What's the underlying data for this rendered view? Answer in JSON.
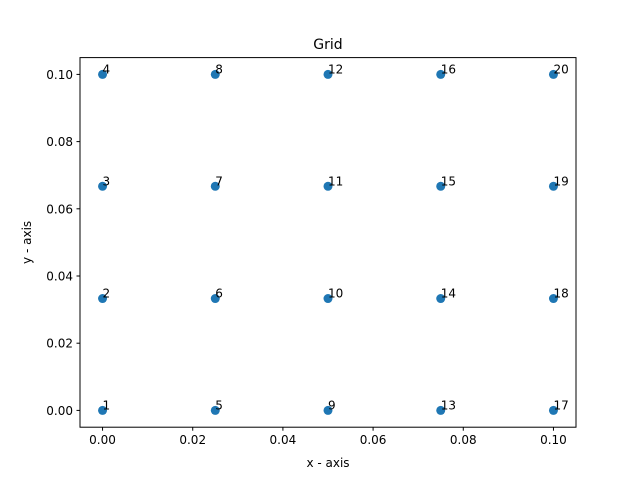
{
  "chart_data": {
    "type": "scatter",
    "title": "Grid",
    "xlabel": "x - axis",
    "ylabel": "y - axis",
    "xlim": [
      -0.005,
      0.105
    ],
    "ylim": [
      -0.005,
      0.105
    ],
    "grid": false,
    "marker_color": "#1f77b4",
    "xticks": [
      0.0,
      0.02,
      0.04,
      0.06,
      0.08,
      0.1
    ],
    "xtick_labels": [
      "0.00",
      "0.02",
      "0.04",
      "0.06",
      "0.08",
      "0.10"
    ],
    "yticks": [
      0.0,
      0.02,
      0.04,
      0.06,
      0.08,
      0.1
    ],
    "ytick_labels": [
      "0.00",
      "0.02",
      "0.04",
      "0.06",
      "0.08",
      "0.10"
    ],
    "points": [
      {
        "x": 0.0,
        "y": 0.0,
        "label": "1"
      },
      {
        "x": 0.0,
        "y": 0.0333,
        "label": "2"
      },
      {
        "x": 0.0,
        "y": 0.0667,
        "label": "3"
      },
      {
        "x": 0.0,
        "y": 0.1,
        "label": "4"
      },
      {
        "x": 0.025,
        "y": 0.0,
        "label": "5"
      },
      {
        "x": 0.025,
        "y": 0.0333,
        "label": "6"
      },
      {
        "x": 0.025,
        "y": 0.0667,
        "label": "7"
      },
      {
        "x": 0.025,
        "y": 0.1,
        "label": "8"
      },
      {
        "x": 0.05,
        "y": 0.0,
        "label": "9"
      },
      {
        "x": 0.05,
        "y": 0.0333,
        "label": "10"
      },
      {
        "x": 0.05,
        "y": 0.0667,
        "label": "11"
      },
      {
        "x": 0.05,
        "y": 0.1,
        "label": "12"
      },
      {
        "x": 0.075,
        "y": 0.0,
        "label": "13"
      },
      {
        "x": 0.075,
        "y": 0.0333,
        "label": "14"
      },
      {
        "x": 0.075,
        "y": 0.0667,
        "label": "15"
      },
      {
        "x": 0.075,
        "y": 0.1,
        "label": "16"
      },
      {
        "x": 0.1,
        "y": 0.0,
        "label": "17"
      },
      {
        "x": 0.1,
        "y": 0.0333,
        "label": "18"
      },
      {
        "x": 0.1,
        "y": 0.0667,
        "label": "19"
      },
      {
        "x": 0.1,
        "y": 0.1,
        "label": "20"
      }
    ]
  }
}
